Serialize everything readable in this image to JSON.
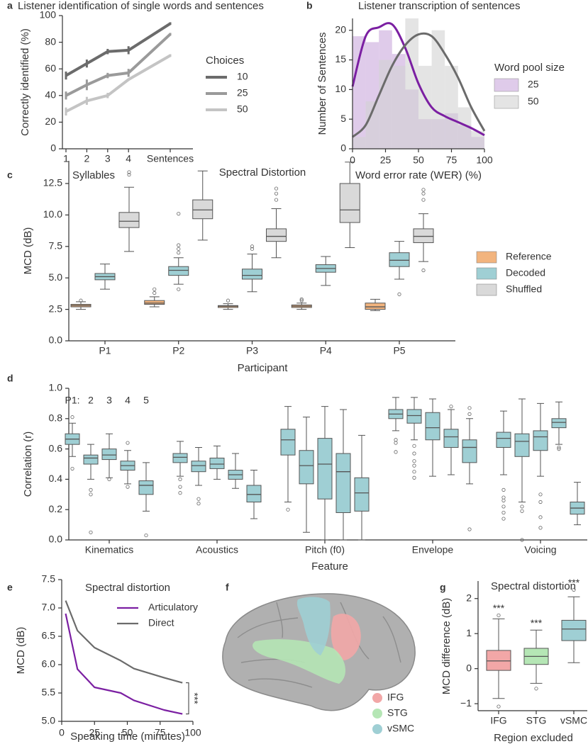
{
  "chart_data": [
    {
      "type": "line",
      "panel": "a",
      "title": "Listener identification of single words and sentences",
      "categories": [
        "1",
        "2",
        "3",
        "4",
        "Sentences"
      ],
      "series": [
        {
          "name": "10",
          "color": "#6b6b6b",
          "values": [
            55,
            64,
            73,
            74,
            94
          ],
          "errors": [
            3,
            3,
            2,
            3,
            1
          ]
        },
        {
          "name": "25",
          "color": "#9a9a9a",
          "values": [
            40,
            48,
            55,
            57,
            86
          ],
          "errors": [
            3,
            4,
            2,
            3,
            1
          ]
        },
        {
          "name": "50",
          "color": "#c4c4c4",
          "values": [
            28,
            36,
            40,
            52,
            70
          ],
          "errors": [
            3,
            3,
            2,
            null,
            1
          ]
        }
      ],
      "ylim": [
        0,
        100
      ],
      "yticks": [
        0,
        20,
        40,
        60,
        80,
        100
      ],
      "ylabel": "Correctly identified (%)",
      "xlabel": "Syllables",
      "legend_title": "Choices"
    },
    {
      "type": "histogram",
      "panel": "b",
      "title": "Listener transcription of sentences",
      "bins": [
        0,
        10,
        20,
        30,
        40,
        50,
        60,
        70,
        80,
        90,
        100
      ],
      "series": [
        {
          "name": "25",
          "color": "#c9a8dc",
          "values": [
            19,
            18,
            20,
            16,
            10,
            5,
            5,
            6,
            4,
            2
          ]
        },
        {
          "name": "50",
          "color": "#d2d2d2",
          "values": [
            2,
            8,
            15,
            14,
            22,
            14,
            20,
            14,
            7,
            3
          ]
        }
      ],
      "curve_x": [
        0,
        10,
        20,
        30,
        40,
        50,
        60,
        70,
        80,
        90,
        100
      ],
      "curves": [
        {
          "color": "#7b1fa2",
          "values": [
            10.5,
            19,
            20.5,
            21,
            17,
            11,
            7,
            5.5,
            4.5,
            3.5,
            2.3
          ]
        },
        {
          "color": "#6b6b6b",
          "values": [
            2,
            4,
            9,
            14,
            17.5,
            19.3,
            19,
            16,
            12,
            7,
            3
          ]
        }
      ],
      "xlim": [
        0,
        100
      ],
      "xticks": [
        0,
        25,
        50,
        75,
        100
      ],
      "ylim": [
        0,
        22
      ],
      "yticks": [
        0,
        5,
        10,
        15,
        20
      ],
      "xlabel": "Word error rate (WER) (%)",
      "ylabel": "Number of Sentences",
      "legend_title": "Word pool size"
    },
    {
      "type": "box",
      "panel": "c",
      "title": "Spectral Distortion",
      "categories": [
        "P1",
        "P2",
        "P3",
        "P4",
        "P5"
      ],
      "series": [
        {
          "name": "Reference",
          "color": "#f2b47e",
          "boxes": [
            {
              "low": 2.5,
              "q1": 2.7,
              "median": 2.8,
              "q3": 2.9,
              "high": 3.1,
              "outliers": [
                3.2
              ]
            },
            {
              "low": 2.7,
              "q1": 2.9,
              "median": 3.0,
              "q3": 3.2,
              "high": 3.5,
              "outliers": [
                3.8,
                4.1
              ]
            },
            {
              "low": 2.5,
              "q1": 2.65,
              "median": 2.75,
              "q3": 2.8,
              "high": 2.95,
              "outliers": [
                3.2
              ]
            },
            {
              "low": 2.5,
              "q1": 2.65,
              "median": 2.75,
              "q3": 2.85,
              "high": 3.0,
              "outliers": [
                3.2,
                3.3
              ]
            },
            {
              "low": 2.4,
              "q1": 2.5,
              "median": 2.7,
              "q3": 3.0,
              "high": 3.3
            }
          ]
        },
        {
          "name": "Decoded",
          "color": "#9fcfd4",
          "boxes": [
            {
              "low": 4.1,
              "q1": 4.85,
              "median": 5.1,
              "q3": 5.35,
              "high": 6.1
            },
            {
              "low": 4.5,
              "q1": 5.2,
              "median": 5.6,
              "q3": 5.9,
              "high": 6.6,
              "outliers": [
                4.1,
                7.0,
                7.3,
                7.6,
                10.1
              ]
            },
            {
              "low": 3.9,
              "q1": 4.9,
              "median": 5.2,
              "q3": 5.7,
              "high": 6.9,
              "outliers": [
                7.3,
                7.5
              ]
            },
            {
              "low": 4.4,
              "q1": 5.45,
              "median": 5.75,
              "q3": 6.05,
              "high": 6.7
            },
            {
              "low": 4.9,
              "q1": 5.9,
              "median": 6.4,
              "q3": 7.0,
              "high": 7.9,
              "outliers": [
                3.7
              ]
            }
          ]
        },
        {
          "name": "Shuffled",
          "color": "#d9d9d9",
          "boxes": [
            {
              "low": 7.1,
              "q1": 9.0,
              "median": 9.5,
              "q3": 10.2,
              "high": 12.2,
              "outliers": [
                13.2,
                13.4
              ]
            },
            {
              "low": 8.0,
              "q1": 9.7,
              "median": 10.4,
              "q3": 11.2,
              "high": 13.5
            },
            {
              "low": 6.6,
              "q1": 7.9,
              "median": 8.3,
              "q3": 8.9,
              "high": 10.5,
              "outliers": [
                11.2,
                11.7,
                12.1
              ]
            },
            {
              "low": 7.4,
              "q1": 9.4,
              "median": 10.4,
              "q3": 12.5,
              "high": 14.2
            },
            {
              "low": 6.3,
              "q1": 7.8,
              "median": 8.3,
              "q3": 8.9,
              "high": 10.1,
              "outliers": [
                5.6,
                11.2,
                11.7,
                12.0
              ]
            }
          ]
        }
      ],
      "ylim": [
        0,
        14.3
      ],
      "yticks": [
        {
          "value": 0,
          "label": "0.0"
        },
        2.5,
        {
          "value": 5,
          "label": "5.0"
        },
        7.5,
        {
          "value": 10,
          "label": "10.0"
        },
        12.5
      ],
      "ylabel": "MCD (dB)",
      "xlabel": "Participant"
    },
    {
      "type": "box",
      "panel": "d",
      "categories": [
        "Kinematics",
        "Acoustics",
        "Pitch (f0)",
        "Envelope",
        "Voicing"
      ],
      "series": [
        {
          "name": "P1:",
          "color": "#9fcfd4",
          "boxes": [
            {
              "low": 0.55,
              "q1": 0.63,
              "median": 0.665,
              "q3": 0.7,
              "high": 0.77,
              "outliers": [
                0.47,
                0.81
              ]
            },
            {
              "low": 0.42,
              "q1": 0.51,
              "median": 0.545,
              "q3": 0.57,
              "high": 0.65,
              "outliers": [
                0.4,
                0.35,
                0.31
              ]
            },
            {
              "low": 0.25,
              "q1": 0.56,
              "median": 0.66,
              "q3": 0.73,
              "high": 0.88,
              "outliers": [
                0.2
              ]
            },
            {
              "low": 0.72,
              "q1": 0.8,
              "median": 0.83,
              "q3": 0.86,
              "high": 0.94,
              "outliers": [
                0.66,
                0.64,
                0.58
              ]
            },
            {
              "low": 0.43,
              "q1": 0.61,
              "median": 0.67,
              "q3": 0.71,
              "high": 0.85,
              "outliers": [
                0.33,
                0.28,
                0.26,
                0.22,
                0.18,
                0.14
              ]
            }
          ]
        },
        {
          "name": "2",
          "color": "#9fcfd4",
          "boxes": [
            {
              "low": 0.4,
              "q1": 0.5,
              "median": 0.54,
              "q3": 0.56,
              "high": 0.63,
              "outliers": [
                0.33,
                0.3,
                0.05
              ]
            },
            {
              "low": 0.36,
              "q1": 0.45,
              "median": 0.49,
              "q3": 0.52,
              "high": 0.61,
              "outliers": [
                0.27,
                0.24
              ]
            },
            {
              "low": 0.05,
              "q1": 0.37,
              "median": 0.49,
              "q3": 0.59,
              "high": 0.81
            },
            {
              "low": 0.66,
              "q1": 0.77,
              "median": 0.82,
              "q3": 0.86,
              "high": 0.94,
              "outliers": [
                0.62,
                0.57,
                0.52,
                0.49,
                0.45,
                0.41
              ]
            },
            {
              "low": 0.25,
              "q1": 0.55,
              "median": 0.65,
              "q3": 0.7,
              "high": 0.93,
              "outliers": [
                0.22,
                0.19,
                0
              ]
            }
          ]
        },
        {
          "name": "3",
          "color": "#9fcfd4",
          "boxes": [
            {
              "low": 0.41,
              "q1": 0.53,
              "median": 0.56,
              "q3": 0.6,
              "high": 0.7,
              "outliers": [
                0.4
              ]
            },
            {
              "low": 0.4,
              "q1": 0.47,
              "median": 0.5,
              "q3": 0.54,
              "high": 0.62
            },
            {
              "low": 0,
              "q1": 0.27,
              "median": 0.5,
              "q3": 0.67,
              "high": 0.88
            },
            {
              "low": 0.42,
              "q1": 0.66,
              "median": 0.74,
              "q3": 0.84,
              "high": 0.93
            },
            {
              "low": 0.42,
              "q1": 0.59,
              "median": 0.68,
              "q3": 0.72,
              "high": 0.9,
              "outliers": [
                0.3,
                0.25,
                0.15,
                0.08
              ]
            }
          ]
        },
        {
          "name": "4",
          "color": "#9fcfd4",
          "boxes": [
            {
              "low": 0.37,
              "q1": 0.46,
              "median": 0.49,
              "q3": 0.52,
              "high": 0.59,
              "outliers": [
                0.35,
                0.64
              ]
            },
            {
              "low": 0.34,
              "q1": 0.4,
              "median": 0.43,
              "q3": 0.46,
              "high": 0.57
            },
            {
              "low": 0,
              "q1": 0.18,
              "median": 0.45,
              "q3": 0.57,
              "high": 0.86
            },
            {
              "low": 0.43,
              "q1": 0.61,
              "median": 0.68,
              "q3": 0.73,
              "high": 0.86,
              "outliers": [
                0.88
              ]
            },
            {
              "low": 0.63,
              "q1": 0.74,
              "median": 0.775,
              "q3": 0.8,
              "high": 0.91,
              "outliers": [
                0.6,
                0.61
              ]
            }
          ]
        },
        {
          "name": "5",
          "color": "#9fcfd4",
          "boxes": [
            {
              "low": 0.19,
              "q1": 0.3,
              "median": 0.36,
              "q3": 0.39,
              "high": 0.51,
              "outliers": [
                0.03
              ]
            },
            {
              "low": 0.14,
              "q1": 0.25,
              "median": 0.3,
              "q3": 0.36,
              "high": 0.46
            },
            {
              "low": 0,
              "q1": 0.19,
              "median": 0.31,
              "q3": 0.41,
              "high": 0.69
            },
            {
              "low": 0.37,
              "q1": 0.51,
              "median": 0.61,
              "q3": 0.66,
              "high": 0.8,
              "outliers": [
                0.87,
                0.83,
                0.07
              ]
            },
            {
              "low": 0.1,
              "q1": 0.17,
              "median": 0.21,
              "q3": 0.25,
              "high": 0.38
            }
          ]
        }
      ],
      "ylim": [
        0,
        1
      ],
      "yticks": [
        {
          "value": 0,
          "label": "0.0"
        },
        0.2,
        0.4,
        0.6,
        0.8,
        {
          "value": 1,
          "label": "1.0"
        }
      ],
      "ylabel": "Correlation (r)",
      "xlabel": "Feature"
    },
    {
      "type": "line",
      "panel": "e",
      "title": "Spectral distortion",
      "x": [
        3,
        12,
        25,
        45,
        55,
        78,
        92
      ],
      "series": [
        {
          "name": "Articulatory",
          "color": "#7b1fa2",
          "values": [
            6.9,
            5.92,
            5.6,
            5.5,
            5.37,
            5.2,
            5.13
          ]
        },
        {
          "name": "Direct",
          "color": "#6b6b6b",
          "values": [
            7.13,
            6.6,
            6.3,
            6.07,
            5.93,
            5.77,
            5.68
          ]
        }
      ],
      "xlim": [
        0,
        100
      ],
      "xticks": [
        0,
        25,
        50,
        75,
        100
      ],
      "ylim": [
        5,
        7.5
      ],
      "yticks": [
        {
          "value": 5,
          "label": "5.0"
        },
        5.5,
        {
          "value": 6,
          "label": "6.0"
        },
        6.5,
        {
          "value": 7,
          "label": "7.0"
        },
        7.5
      ],
      "ylabel": "MCD (dB)",
      "xlabel": "Speaking time (minutes)",
      "annotation": "***"
    },
    {
      "type": "image",
      "panel": "f",
      "legend": [
        {
          "name": "IFG",
          "color": "#f2a7a7"
        },
        {
          "name": "STG",
          "color": "#b5e6b5"
        },
        {
          "name": "vSMC",
          "color": "#9fcfd4"
        }
      ]
    },
    {
      "type": "box",
      "panel": "g",
      "title": "Spectral distortion",
      "categories": [
        "IFG",
        "STG",
        "vSMC"
      ],
      "series": [
        {
          "colors": [
            "#f2a7a7",
            "#b5e6b5",
            "#9fcfd4"
          ],
          "boxes": [
            {
              "low": -0.85,
              "q1": -0.05,
              "median": 0.22,
              "q3": 0.52,
              "high": 1.42,
              "outliers": [
                -1.08,
                1.52
              ]
            },
            {
              "low": -0.42,
              "q1": 0.12,
              "median": 0.35,
              "q3": 0.58,
              "high": 1.1,
              "outliers": [
                -0.57
              ]
            },
            {
              "low": 0.17,
              "q1": 0.8,
              "median": 1.13,
              "q3": 1.38,
              "high": 2.05,
              "outliers": [
                2.25
              ]
            }
          ]
        }
      ],
      "ylim": [
        -1.2,
        2.5
      ],
      "yticks": [
        {
          "value": -1,
          "label": "−1"
        },
        0,
        1,
        2
      ],
      "ylabel": "MCD difference (dB)",
      "xlabel": "Region excluded",
      "annotations": [
        "***",
        "***",
        "***"
      ]
    }
  ]
}
